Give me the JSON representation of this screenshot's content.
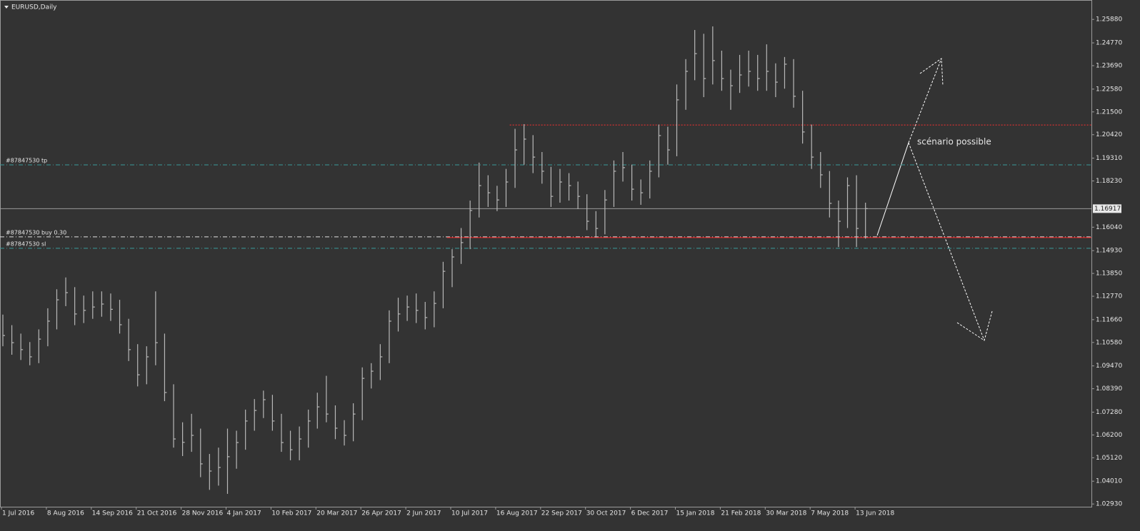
{
  "chart_data": {
    "type": "ohlc",
    "title": "EURUSD,Daily",
    "annotation": "scénario possible",
    "color": "#b8b8b8",
    "categories": [
      "1 Jul 2016",
      null,
      null,
      null,
      null,
      "8 Aug 2016",
      null,
      null,
      null,
      null,
      "14 Sep 2016",
      null,
      null,
      null,
      null,
      "21 Oct 2016",
      null,
      null,
      null,
      null,
      "28 Nov 2016",
      null,
      null,
      null,
      null,
      "4 Jan 2017",
      null,
      null,
      null,
      null,
      "10 Feb 2017",
      null,
      null,
      null,
      null,
      "20 Mar 2017",
      null,
      null,
      null,
      null,
      "26 Apr 2017",
      null,
      null,
      null,
      null,
      "2 Jun 2017",
      null,
      null,
      null,
      null,
      "10 Jul 2017",
      null,
      null,
      null,
      null,
      "16 Aug 2017",
      null,
      null,
      null,
      null,
      "22 Sep 2017",
      null,
      null,
      null,
      null,
      "30 Oct 2017",
      null,
      null,
      null,
      null,
      "6 Dec 2017",
      null,
      null,
      null,
      null,
      "15 Jan 2018",
      null,
      null,
      null,
      null,
      "21 Feb 2018",
      null,
      null,
      null,
      null,
      "30 Mar 2018",
      null,
      null,
      null,
      null,
      "7 May 2018",
      null,
      null,
      null,
      null,
      "13 Jun 2018",
      null
    ],
    "high": [
      1.119,
      1.114,
      1.11,
      1.106,
      1.112,
      1.122,
      1.131,
      1.1366,
      1.132,
      1.128,
      1.13,
      1.13,
      1.129,
      1.126,
      1.117,
      1.105,
      1.104,
      1.13,
      1.11,
      1.086,
      1.068,
      1.072,
      1.065,
      1.053,
      1.056,
      1.065,
      1.064,
      1.074,
      1.079,
      1.083,
      1.081,
      1.072,
      1.064,
      1.066,
      1.074,
      1.082,
      1.09,
      1.076,
      1.069,
      1.077,
      1.094,
      1.096,
      1.105,
      1.121,
      1.127,
      1.128,
      1.129,
      1.125,
      1.13,
      1.144,
      1.15,
      1.16,
      1.173,
      1.191,
      1.185,
      1.18,
      1.188,
      1.207,
      1.2092,
      1.204,
      1.196,
      1.189,
      1.188,
      1.186,
      1.182,
      1.176,
      1.168,
      1.178,
      1.192,
      1.196,
      1.19,
      1.183,
      1.192,
      1.209,
      1.208,
      1.228,
      1.24,
      1.2538,
      1.252,
      1.2555,
      1.244,
      1.235,
      1.242,
      1.244,
      1.242,
      1.247,
      1.238,
      1.241,
      1.24,
      1.225,
      1.209,
      1.196,
      1.187,
      1.173,
      1.184,
      1.185,
      1.172
    ],
    "low": [
      1.104,
      1.1,
      1.0975,
      1.095,
      1.096,
      1.104,
      1.112,
      1.123,
      1.114,
      1.115,
      1.117,
      1.118,
      1.116,
      1.11,
      1.097,
      1.085,
      1.086,
      1.095,
      1.078,
      1.056,
      1.052,
      1.054,
      1.042,
      1.036,
      1.038,
      1.0341,
      1.046,
      1.055,
      1.064,
      1.07,
      1.064,
      1.054,
      1.05,
      1.05,
      1.056,
      1.065,
      1.068,
      1.06,
      1.057,
      1.059,
      1.069,
      1.084,
      1.088,
      1.096,
      1.111,
      1.116,
      1.115,
      1.112,
      1.113,
      1.122,
      1.132,
      1.143,
      1.15,
      1.165,
      1.17,
      1.168,
      1.17,
      1.179,
      1.19,
      1.186,
      1.181,
      1.17,
      1.172,
      1.173,
      1.169,
      1.159,
      1.1555,
      1.157,
      1.17,
      1.182,
      1.173,
      1.171,
      1.174,
      1.184,
      1.19,
      1.194,
      1.216,
      1.23,
      1.222,
      1.228,
      1.225,
      1.216,
      1.224,
      1.227,
      1.225,
      1.225,
      1.222,
      1.226,
      1.217,
      1.2,
      1.188,
      1.179,
      1.165,
      1.151,
      1.16,
      1.151,
      1.155
    ],
    "close": [
      1.1091,
      1.1057,
      1.1024,
      1.099,
      1.1074,
      1.1159,
      1.126,
      1.1294,
      1.1193,
      1.121,
      1.1226,
      1.124,
      1.1215,
      1.1142,
      1.1024,
      1.0905,
      1.099,
      1.1057,
      1.0821,
      1.0601,
      1.0585,
      1.0618,
      1.0483,
      1.0449,
      1.0466,
      1.0517,
      1.0584,
      1.0686,
      1.0736,
      1.0787,
      1.0686,
      1.0584,
      1.055,
      1.0601,
      1.0686,
      1.0753,
      1.0719,
      1.0652,
      1.0618,
      1.0719,
      1.0888,
      1.0922,
      1.099,
      1.1159,
      1.1193,
      1.1226,
      1.121,
      1.1176,
      1.1243,
      1.1395,
      1.1463,
      1.1531,
      1.1683,
      1.1801,
      1.1767,
      1.1733,
      1.1818,
      1.197,
      1.2021,
      1.1936,
      1.1869,
      1.175,
      1.1818,
      1.1801,
      1.175,
      1.1632,
      1.1598,
      1.1733,
      1.1869,
      1.1886,
      1.1784,
      1.1767,
      1.1869,
      1.2038,
      1.197,
      1.2207,
      1.2342,
      1.2426,
      1.2308,
      1.2393,
      1.2308,
      1.2274,
      1.2325,
      1.2342,
      1.2308,
      1.2342,
      1.2291,
      1.2376,
      1.2224,
      1.2055,
      1.1936,
      1.1852,
      1.1717,
      1.1632,
      1.1801,
      1.1598,
      1.1692
    ],
    "ylim": [
      1.028,
      1.268
    ],
    "yticks": [
      {
        "value": 1.2588,
        "label": "1.25880"
      },
      {
        "value": 1.2477,
        "label": "1.24770"
      },
      {
        "value": 1.2369,
        "label": "1.23690"
      },
      {
        "value": 1.2258,
        "label": "1.22580"
      },
      {
        "value": 1.215,
        "label": "1.21500"
      },
      {
        "value": 1.2042,
        "label": "1.20420"
      },
      {
        "value": 1.1931,
        "label": "1.19310"
      },
      {
        "value": 1.1823,
        "label": "1.18230"
      },
      {
        "value": 1.1604,
        "label": "1.16040"
      },
      {
        "value": 1.1493,
        "label": "1.14930"
      },
      {
        "value": 1.1385,
        "label": "1.13850"
      },
      {
        "value": 1.1277,
        "label": "1.12770"
      },
      {
        "value": 1.1166,
        "label": "1.11660"
      },
      {
        "value": 1.1058,
        "label": "1.10580"
      },
      {
        "value": 1.0947,
        "label": "1.09470"
      },
      {
        "value": 1.0839,
        "label": "1.08390"
      },
      {
        "value": 1.0728,
        "label": "1.07280"
      },
      {
        "value": 1.062,
        "label": "1.06200"
      },
      {
        "value": 1.0512,
        "label": "1.05120"
      },
      {
        "value": 1.0401,
        "label": "1.04010"
      },
      {
        "value": 1.0293,
        "label": "1.02930"
      }
    ],
    "levels": [
      {
        "label": "#87847530 tp",
        "value": 1.1899,
        "color": "#3a9a9a",
        "style": "dashdot"
      },
      {
        "label": "#87847530 buy 0.30",
        "value": 1.1558,
        "color": "#e0e0e0",
        "style": "dashdot"
      },
      {
        "label": "#87847530 sl",
        "value": 1.1504,
        "color": "#3a9a9a",
        "style": "dashdot"
      },
      {
        "value": 1.2088,
        "color": "#ff3030",
        "style": "dotted"
      },
      {
        "value": 1.1555,
        "color": "#ff2020",
        "style": "solid"
      }
    ],
    "current_price": 1.16917,
    "current_price_color": "#9a9a9a"
  }
}
